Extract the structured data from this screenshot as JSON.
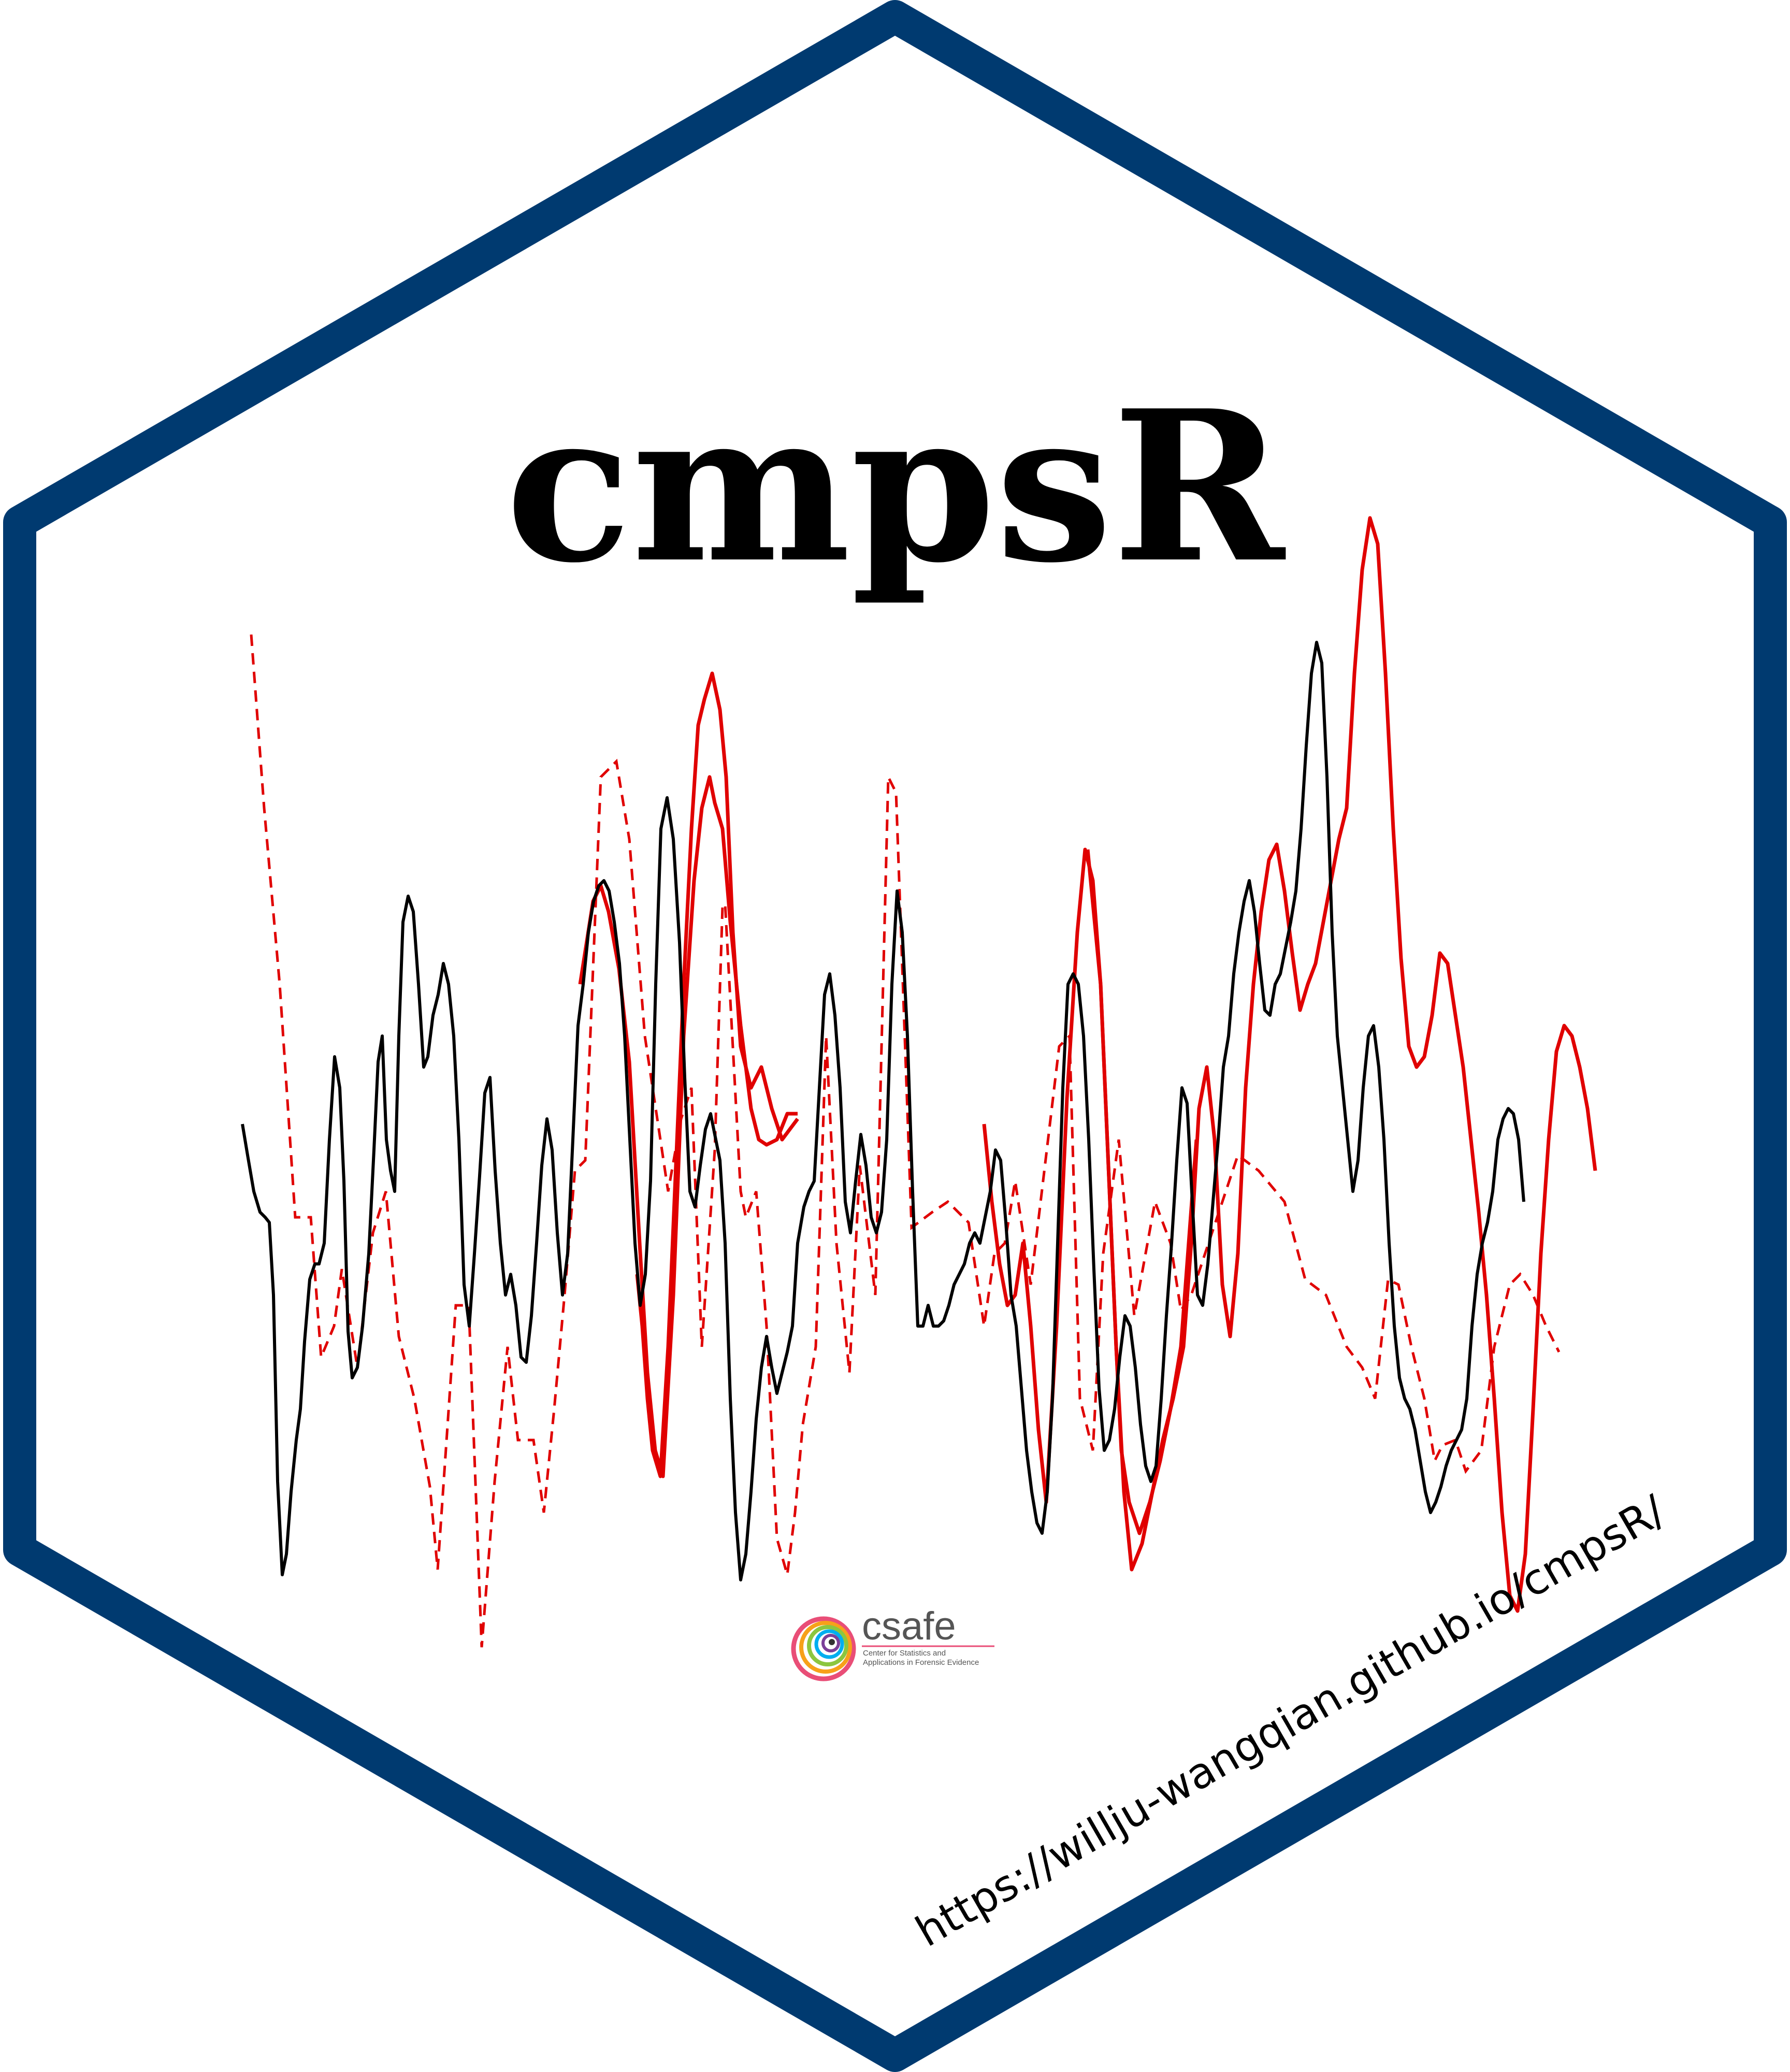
{
  "title": "cmpsR",
  "url": "https://willju-wangqian.github.io/cmpsR/",
  "logo": {
    "name": "csafe",
    "subtitle_line1": "Center for Statistics and",
    "subtitle_line2": "Applications in Forensic Evidence",
    "icon": "csafe-swirl-icon"
  },
  "colors": {
    "border": "#003a70",
    "background": "#ffffff",
    "reference_signature": "#000000",
    "compared_signature": "#e00000"
  }
}
